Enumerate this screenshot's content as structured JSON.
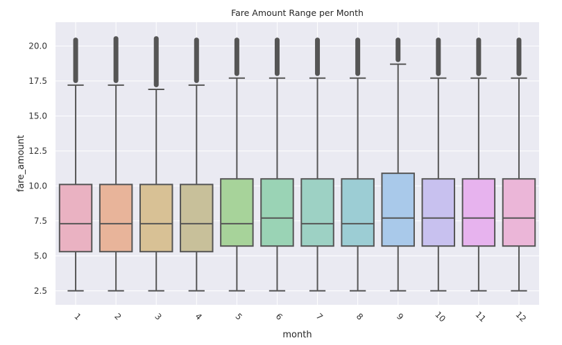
{
  "chart_data": {
    "type": "box",
    "title": "Fare Amount Range per Month",
    "xlabel": "month",
    "ylabel": "fare_amount",
    "categories": [
      "1",
      "2",
      "3",
      "4",
      "5",
      "6",
      "7",
      "8",
      "9",
      "10",
      "11",
      "12"
    ],
    "ylim": [
      1.5,
      21.7
    ],
    "yticks": [
      "2.5",
      "5.0",
      "7.5",
      "10.0",
      "12.5",
      "15.0",
      "17.5",
      "20.0"
    ],
    "grid": true,
    "legend": "none",
    "boxes": [
      {
        "month": "1",
        "whislo": 2.5,
        "q1": 5.3,
        "med": 7.3,
        "q3": 10.1,
        "whishi": 17.2,
        "flier_max": 20.6
      },
      {
        "month": "2",
        "whislo": 2.5,
        "q1": 5.3,
        "med": 7.3,
        "q3": 10.1,
        "whishi": 17.2,
        "flier_max": 20.7
      },
      {
        "month": "3",
        "whislo": 2.5,
        "q1": 5.3,
        "med": 7.3,
        "q3": 10.1,
        "whishi": 16.9,
        "flier_max": 20.7
      },
      {
        "month": "4",
        "whislo": 2.5,
        "q1": 5.3,
        "med": 7.3,
        "q3": 10.1,
        "whishi": 17.2,
        "flier_max": 20.6
      },
      {
        "month": "5",
        "whislo": 2.5,
        "q1": 5.7,
        "med": 7.3,
        "q3": 10.5,
        "whishi": 17.7,
        "flier_max": 20.6
      },
      {
        "month": "6",
        "whislo": 2.5,
        "q1": 5.7,
        "med": 7.7,
        "q3": 10.5,
        "whishi": 17.7,
        "flier_max": 20.6
      },
      {
        "month": "7",
        "whislo": 2.5,
        "q1": 5.7,
        "med": 7.3,
        "q3": 10.5,
        "whishi": 17.7,
        "flier_max": 20.6
      },
      {
        "month": "8",
        "whislo": 2.5,
        "q1": 5.7,
        "med": 7.3,
        "q3": 10.5,
        "whishi": 17.7,
        "flier_max": 20.6
      },
      {
        "month": "9",
        "whislo": 2.5,
        "q1": 5.7,
        "med": 7.7,
        "q3": 10.9,
        "whishi": 18.7,
        "flier_max": 20.6
      },
      {
        "month": "10",
        "whislo": 2.5,
        "q1": 5.7,
        "med": 7.7,
        "q3": 10.5,
        "whishi": 17.7,
        "flier_max": 20.6
      },
      {
        "month": "11",
        "whislo": 2.5,
        "q1": 5.7,
        "med": 7.7,
        "q3": 10.5,
        "whishi": 17.7,
        "flier_max": 20.6
      },
      {
        "month": "12",
        "whislo": 2.5,
        "q1": 5.7,
        "med": 7.7,
        "q3": 10.5,
        "whishi": 17.7,
        "flier_max": 20.6
      }
    ],
    "colors": {
      "background": "#eaeaf2",
      "grid": "#ffffff",
      "line": "#555555",
      "boxes": [
        "#eab2c2",
        "#e8b49a",
        "#d8c195",
        "#c8c09a",
        "#a7d39a",
        "#9ad3b5",
        "#9dd1c4",
        "#9ccdd4",
        "#a9c9ea",
        "#c8c1ef",
        "#e7b3ee",
        "#ebb6d8"
      ]
    }
  }
}
